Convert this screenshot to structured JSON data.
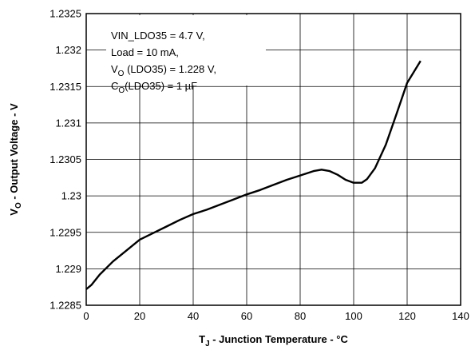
{
  "chart_data": {
    "type": "line",
    "title": "",
    "xlabel": {
      "main": "T",
      "sub": "J",
      "rest": " - Junction Temperature - °C"
    },
    "ylabel": {
      "main": "V",
      "sub": "O",
      "rest": " - Output Voltage - V"
    },
    "xlim": [
      0,
      140
    ],
    "ylim": [
      1.2285,
      1.2325
    ],
    "xticks": [
      "0",
      "20",
      "40",
      "60",
      "80",
      "100",
      "120",
      "140"
    ],
    "yticks": [
      "1.2285",
      "1.229",
      "1.2295",
      "1.23",
      "1.2305",
      "1.231",
      "1.2315",
      "1.232",
      "1.2325"
    ],
    "grid": true,
    "annotation": [
      {
        "main": "VIN_LDO35 = 4.7 V,"
      },
      {
        "main": "Load = 10 mA,"
      },
      {
        "main": "V",
        "sub": "O",
        "rest": " (LDO35) = 1.228 V,"
      },
      {
        "main": "C",
        "sub": "O",
        "rest": "(LDO35) = 1 µF"
      }
    ],
    "series": [
      {
        "color": "#000000",
        "x": [
          0,
          2,
          5,
          10,
          15,
          20,
          25,
          30,
          35,
          40,
          45,
          50,
          55,
          60,
          65,
          70,
          75,
          80,
          85,
          88,
          91,
          94,
          97,
          100,
          103,
          105,
          108,
          112,
          116,
          120,
          125
        ],
        "y": [
          1.22872,
          1.22878,
          1.22892,
          1.2291,
          1.22925,
          1.2294,
          1.22949,
          1.22958,
          1.22967,
          1.22975,
          1.22981,
          1.22988,
          1.22995,
          1.23002,
          1.23008,
          1.23015,
          1.23022,
          1.23028,
          1.23034,
          1.23036,
          1.23034,
          1.23029,
          1.23022,
          1.23018,
          1.23018,
          1.23023,
          1.23038,
          1.2307,
          1.23112,
          1.23155,
          1.23185
        ]
      }
    ]
  }
}
